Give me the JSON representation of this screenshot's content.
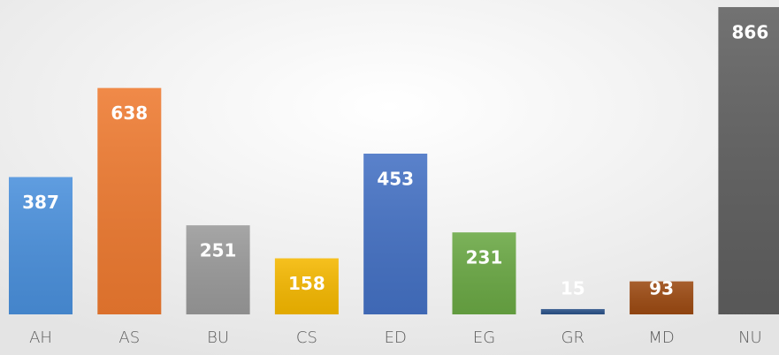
{
  "chart_data": {
    "type": "bar",
    "categories": [
      "AH",
      "AS",
      "BU",
      "CS",
      "ED",
      "EG",
      "GR",
      "MD",
      "NU"
    ],
    "values": [
      387,
      638,
      251,
      158,
      453,
      231,
      15,
      93,
      866
    ],
    "colors": [
      "#4a90dc",
      "#ee7a30",
      "#9a9a9a",
      "#f5b800",
      "#4471c4",
      "#6aa844",
      "#2a5188",
      "#9c4a12",
      "#5f5f5f"
    ],
    "grid": false
  }
}
